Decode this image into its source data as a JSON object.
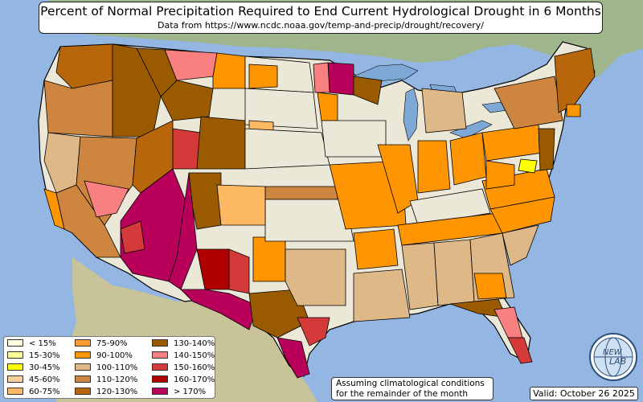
{
  "header": {
    "title": "Percent of Normal Precipitation Required to End Current Hydrological Drought in 6 Months",
    "subtitle": "Data from https://www.ncdc.noaa.gov/temp-and-precip/drought/recovery/"
  },
  "legend": {
    "items": [
      {
        "label": "< 15%",
        "color": "#ffffe0"
      },
      {
        "label": "15-30%",
        "color": "#ffff99"
      },
      {
        "label": "30-45%",
        "color": "#ffff00"
      },
      {
        "label": "45-60%",
        "color": "#f8d0a0"
      },
      {
        "label": "60-75%",
        "color": "#fdb863"
      },
      {
        "label": "75-90%",
        "color": "#fd9a32"
      },
      {
        "label": "90-100%",
        "color": "#ff9500"
      },
      {
        "label": "100-110%",
        "color": "#deb887"
      },
      {
        "label": "110-120%",
        "color": "#cd853f"
      },
      {
        "label": "120-130%",
        "color": "#b8660b"
      },
      {
        "label": "130-140%",
        "color": "#9a5b00"
      },
      {
        "label": "140-150%",
        "color": "#f88080"
      },
      {
        "label": "150-160%",
        "color": "#d43a3a"
      },
      {
        "label": "160-170%",
        "color": "#b00000"
      },
      {
        "label": "> 170%",
        "color": "#b8005a"
      }
    ]
  },
  "footnote": {
    "line1": "Assuming climatological conditions",
    "line2": "for the remainder of the month"
  },
  "valid": "Valid: October 26 2025",
  "logo": {
    "text_top": "NEW",
    "text_bottom": "LAB",
    "icon": "globe-logo-icon"
  },
  "colors": {
    "ocean": "#93b6e3",
    "land": "#b8c9a0",
    "lake": "#7ea9d6",
    "state_border": "#000000"
  }
}
